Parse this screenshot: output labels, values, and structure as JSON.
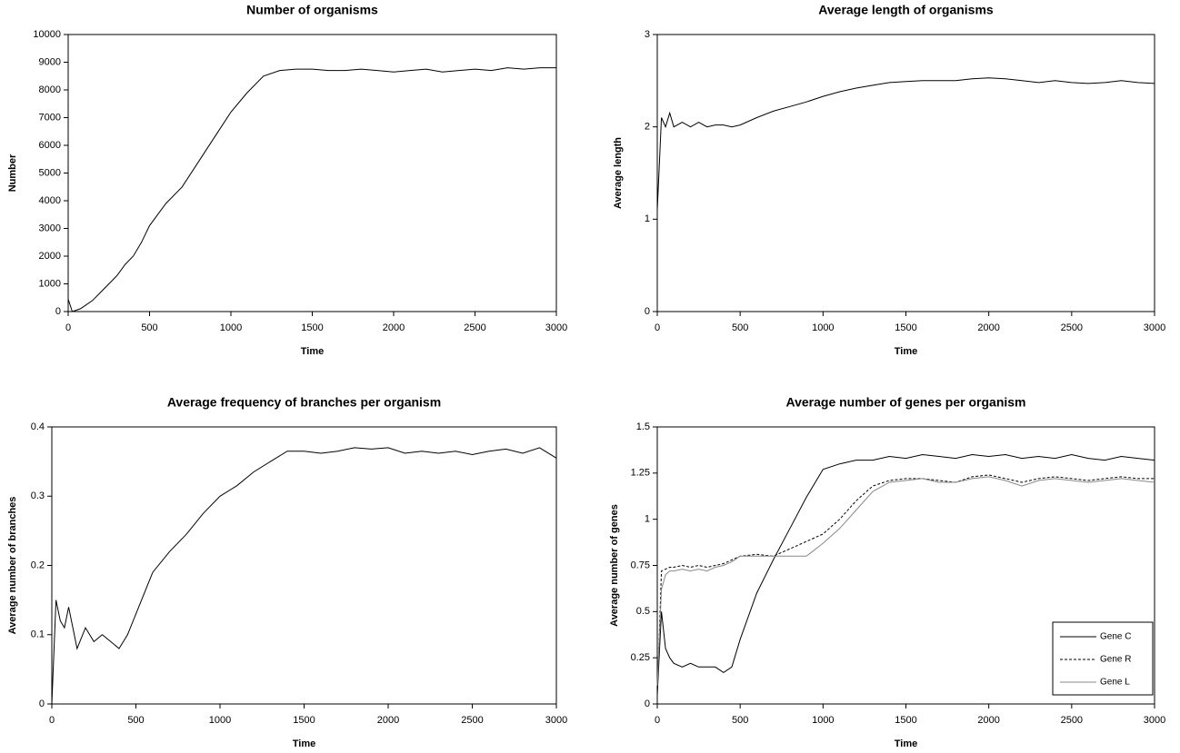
{
  "chart_data": [
    {
      "type": "line",
      "title": "Number of organisms",
      "xlabel": "Time",
      "ylabel": "Number",
      "x": [
        0,
        25,
        50,
        75,
        100,
        150,
        200,
        250,
        300,
        350,
        400,
        450,
        500,
        600,
        700,
        800,
        900,
        1000,
        1100,
        1200,
        1300,
        1400,
        1500,
        1600,
        1700,
        1800,
        1900,
        2000,
        2100,
        2200,
        2300,
        2400,
        2500,
        2600,
        2700,
        2800,
        2900,
        3000
      ],
      "values": [
        450,
        0,
        50,
        100,
        200,
        400,
        700,
        1000,
        1300,
        1700,
        2000,
        2500,
        3100,
        3900,
        4500,
        5400,
        6300,
        7200,
        7900,
        8500,
        8700,
        8750,
        8750,
        8700,
        8700,
        8750,
        8700,
        8650,
        8700,
        8750,
        8650,
        8700,
        8750,
        8700,
        8800,
        8750,
        8800,
        8800
      ],
      "color": "#000000",
      "xlim": [
        0,
        3000
      ],
      "xticks": [
        0,
        500,
        1000,
        1500,
        2000,
        2500,
        3000
      ],
      "ylim": [
        0,
        10000
      ],
      "yticks": [
        0,
        1000,
        2000,
        3000,
        4000,
        5000,
        6000,
        7000,
        8000,
        9000,
        10000
      ]
    },
    {
      "type": "line",
      "title": "Average length of organisms",
      "xlabel": "Time",
      "ylabel": "Average length",
      "x": [
        0,
        25,
        50,
        75,
        100,
        150,
        200,
        250,
        300,
        350,
        400,
        450,
        500,
        600,
        700,
        800,
        900,
        1000,
        1100,
        1200,
        1300,
        1400,
        1500,
        1600,
        1700,
        1800,
        1900,
        2000,
        2100,
        2200,
        2300,
        2400,
        2500,
        2600,
        2700,
        2800,
        2900,
        3000
      ],
      "values": [
        1.1,
        2.1,
        2.0,
        2.15,
        2.0,
        2.05,
        2.0,
        2.05,
        2.0,
        2.02,
        2.02,
        2.0,
        2.02,
        2.1,
        2.17,
        2.22,
        2.27,
        2.33,
        2.38,
        2.42,
        2.45,
        2.48,
        2.49,
        2.5,
        2.5,
        2.5,
        2.52,
        2.53,
        2.52,
        2.5,
        2.48,
        2.5,
        2.48,
        2.47,
        2.48,
        2.5,
        2.48,
        2.47
      ],
      "color": "#000000",
      "xlim": [
        0,
        3000
      ],
      "xticks": [
        0,
        500,
        1000,
        1500,
        2000,
        2500,
        3000
      ],
      "ylim": [
        0,
        3
      ],
      "yticks": [
        0,
        1,
        2,
        3
      ]
    },
    {
      "type": "line",
      "title": "Average frequency of branches per organism",
      "xlabel": "Time",
      "ylabel": "Average number of branches",
      "x": [
        0,
        25,
        50,
        75,
        100,
        150,
        200,
        250,
        300,
        350,
        400,
        450,
        500,
        600,
        700,
        800,
        900,
        1000,
        1100,
        1200,
        1300,
        1400,
        1500,
        1600,
        1700,
        1800,
        1900,
        2000,
        2100,
        2200,
        2300,
        2400,
        2500,
        2600,
        2700,
        2800,
        2900,
        3000
      ],
      "values": [
        0,
        0.15,
        0.12,
        0.11,
        0.14,
        0.08,
        0.11,
        0.09,
        0.1,
        0.09,
        0.08,
        0.1,
        0.13,
        0.19,
        0.22,
        0.245,
        0.275,
        0.3,
        0.315,
        0.335,
        0.35,
        0.365,
        0.365,
        0.362,
        0.365,
        0.37,
        0.368,
        0.37,
        0.362,
        0.365,
        0.362,
        0.365,
        0.36,
        0.365,
        0.368,
        0.362,
        0.37,
        0.355
      ],
      "color": "#000000",
      "xlim": [
        0,
        3000
      ],
      "xticks": [
        0,
        500,
        1000,
        1500,
        2000,
        2500,
        3000
      ],
      "ylim": [
        0,
        0.4
      ],
      "yticks": [
        0,
        0.1,
        0.2,
        0.3,
        0.4
      ]
    },
    {
      "type": "line",
      "title": "Average number of genes per organism",
      "xlabel": "Time",
      "ylabel": "Average number of genes",
      "x": [
        0,
        25,
        50,
        75,
        100,
        150,
        200,
        250,
        300,
        350,
        400,
        450,
        500,
        600,
        700,
        800,
        900,
        1000,
        1100,
        1200,
        1300,
        1400,
        1500,
        1600,
        1700,
        1800,
        1900,
        2000,
        2100,
        2200,
        2300,
        2400,
        2500,
        2600,
        2700,
        2800,
        2900,
        3000
      ],
      "series": [
        {
          "name": "Gene C",
          "color": "#000000",
          "dash": "solid",
          "values": [
            0.05,
            0.5,
            0.3,
            0.25,
            0.22,
            0.2,
            0.22,
            0.2,
            0.2,
            0.2,
            0.17,
            0.2,
            0.35,
            0.6,
            0.78,
            0.95,
            1.12,
            1.27,
            1.3,
            1.32,
            1.32,
            1.34,
            1.33,
            1.35,
            1.34,
            1.33,
            1.35,
            1.34,
            1.35,
            1.33,
            1.34,
            1.33,
            1.35,
            1.33,
            1.32,
            1.34,
            1.33,
            1.32
          ]
        },
        {
          "name": "Gene R",
          "color": "#000000",
          "dash": "dashed",
          "values": [
            0.05,
            0.72,
            0.73,
            0.74,
            0.74,
            0.75,
            0.74,
            0.75,
            0.74,
            0.75,
            0.76,
            0.78,
            0.8,
            0.81,
            0.8,
            0.84,
            0.88,
            0.92,
            1.0,
            1.1,
            1.18,
            1.21,
            1.22,
            1.22,
            1.21,
            1.2,
            1.23,
            1.24,
            1.22,
            1.2,
            1.22,
            1.23,
            1.22,
            1.21,
            1.22,
            1.23,
            1.22,
            1.22
          ]
        },
        {
          "name": "Gene L",
          "color": "#888888",
          "dash": "solid",
          "values": [
            0.1,
            0.62,
            0.7,
            0.72,
            0.72,
            0.73,
            0.72,
            0.73,
            0.72,
            0.74,
            0.75,
            0.77,
            0.8,
            0.8,
            0.8,
            0.8,
            0.8,
            0.87,
            0.95,
            1.05,
            1.15,
            1.2,
            1.21,
            1.22,
            1.2,
            1.2,
            1.22,
            1.23,
            1.21,
            1.18,
            1.21,
            1.22,
            1.21,
            1.2,
            1.21,
            1.22,
            1.21,
            1.2
          ]
        }
      ],
      "legend": "lower right",
      "xlim": [
        0,
        3000
      ],
      "xticks": [
        0,
        500,
        1000,
        1500,
        2000,
        2500,
        3000
      ],
      "ylim": [
        0,
        1.5
      ],
      "yticks": [
        0,
        0.25,
        0.5,
        0.75,
        1,
        1.25,
        1.5
      ]
    }
  ]
}
